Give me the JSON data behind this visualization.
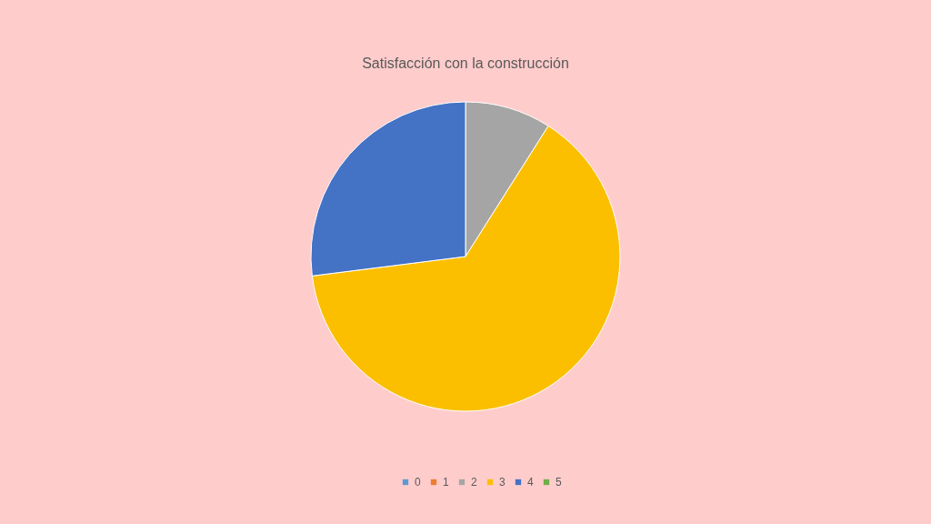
{
  "chart_data": {
    "type": "pie",
    "title": "Satisfacción con la construcción",
    "categories": [
      "0",
      "1",
      "2",
      "3",
      "4",
      "5"
    ],
    "values": [
      0,
      0,
      9,
      64,
      27,
      0
    ],
    "colors": [
      "#5b9bd5",
      "#ed7d31",
      "#a5a5a5",
      "#fbbf00",
      "#4472c4",
      "#70ad47"
    ],
    "legend": "bottom"
  }
}
